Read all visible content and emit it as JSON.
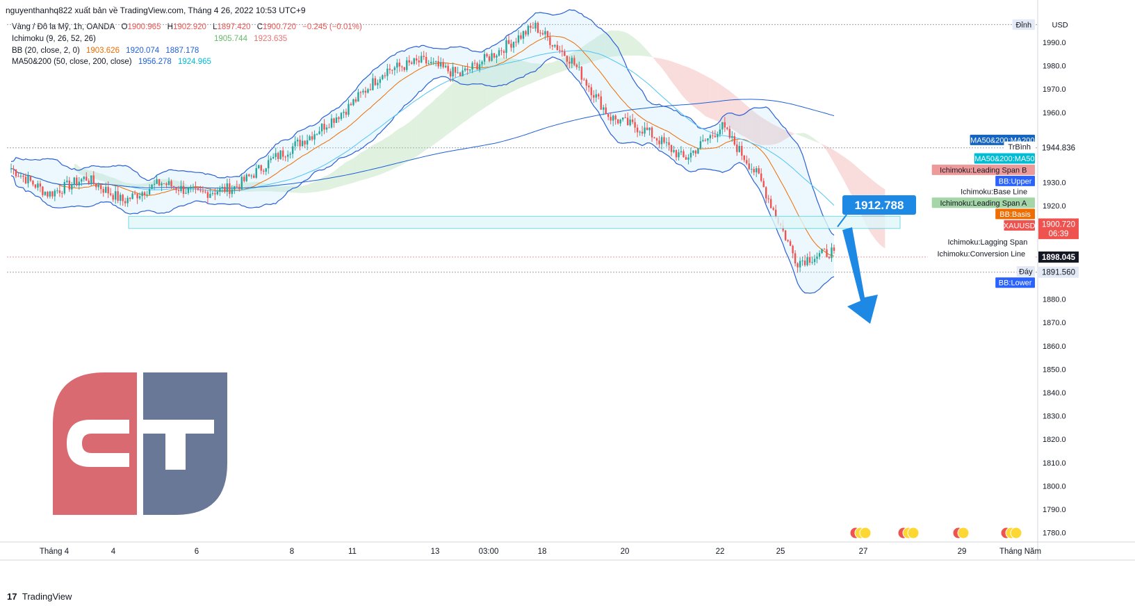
{
  "header": {
    "publisher_line": "nguyenthanhq822 xuất bản về TradingView.com, Tháng 4 26, 2022 10:53 UTC+9"
  },
  "legend": {
    "symbol": "Vàng / Đô la Mỹ, 1h, OANDA",
    "open_label": "O",
    "open": "1900.965",
    "high_label": "H",
    "high": "1902.920",
    "low_label": "L",
    "low": "1897.420",
    "close_label": "C",
    "close": "1900.720",
    "change": "−0.245 (−0.01%)",
    "ichimoku_label": "Ichimoku (9, 26, 52, 26)",
    "ichimoku_a": "1905.744",
    "ichimoku_b": "1923.635",
    "bb_label": "BB (20, close, 2, 0)",
    "bb_basis": "1903.626",
    "bb_upper": "1920.074",
    "bb_lower": "1887.178",
    "ma_label": "MA50&200 (50, close, 200, close)",
    "ma50": "1956.278",
    "ma200": "1924.965"
  },
  "colors": {
    "up": "#26a69a",
    "down": "#ef5350",
    "bb_band": "#2a5fd6",
    "bb_basis": "#ef6c00",
    "ma50": "#4fc3f7",
    "ma200": "#1e5fd9",
    "cloud_green": "#a5d6a7",
    "cloud_red": "#ef9a9a",
    "arrow": "#1e88e5",
    "logo_red": "#d96a72",
    "logo_blue": "#6a7898"
  },
  "annotation": {
    "callout_value": "1912.788"
  },
  "right_labels": [
    {
      "text": "USD",
      "price": 1997.6,
      "bg": "#ffffff",
      "fg": "#131722"
    },
    {
      "text": "Đỉnh",
      "price": 1997.6,
      "bg": "#e3eaf5",
      "fg": "#131722"
    },
    {
      "text": "MA50&200:MA200",
      "price": 1948.2,
      "bg": "#1565c0",
      "fg": "#ffffff"
    },
    {
      "text": "TrBình",
      "price": 1945.3,
      "bg": "#ffffff",
      "fg": "#131722"
    },
    {
      "text": "MA50&200:MA50",
      "price": 1940.3,
      "bg": "#00bcd4",
      "fg": "#ffffff"
    },
    {
      "text": "Ichimoku:Leading Span B",
      "price": 1935.4,
      "bg": "#ef9a9a",
      "fg": "#131722"
    },
    {
      "text": "BB:Upper",
      "price": 1930.6,
      "bg": "#2962ff",
      "fg": "#ffffff"
    },
    {
      "text": "Ichimoku:Base Line",
      "price": 1926.2,
      "bg": "#ffffff",
      "fg": "#131722"
    },
    {
      "text": "Ichimoku:Leading Span A",
      "price": 1921.3,
      "bg": "#a5d6a7",
      "fg": "#131722"
    },
    {
      "text": "BB:Basis",
      "price": 1916.5,
      "bg": "#ef6c00",
      "fg": "#ffffff"
    },
    {
      "text": "XAUUSD",
      "price": 1911.6,
      "bg": "#ef5350",
      "fg": "#ffffff"
    },
    {
      "text": "Ichimoku:Lagging Span",
      "price": 1904.6,
      "bg": "#ffffff",
      "fg": "#131722"
    },
    {
      "text": "Ichimoku:Conversion Line",
      "price": 1899.5,
      "bg": "#ffffff",
      "fg": "#131722"
    },
    {
      "text": "Đáy",
      "price": 1891.9,
      "bg": "#e3eaf5",
      "fg": "#131722"
    },
    {
      "text": "BB:Lower",
      "price": 1887.1,
      "bg": "#2962ff",
      "fg": "#ffffff"
    }
  ],
  "price_tags": [
    {
      "text": "1944.836",
      "price": 1944.836,
      "bg": "#ffffff",
      "fg": "#131722"
    },
    {
      "text": "1900.720",
      "price": 1912.2,
      "bg": "#ef5350",
      "fg": "#ffffff"
    },
    {
      "text": "06:39",
      "price": 1908.1,
      "bg": "#ef5350",
      "fg": "#ffffff"
    },
    {
      "text": "1898.045",
      "price": 1898.045,
      "bg": "#131722",
      "fg": "#ffffff"
    },
    {
      "text": "1891.560",
      "price": 1891.56,
      "bg": "#e3eaf5",
      "fg": "#131722"
    }
  ],
  "time_labels": [
    "Tháng 4",
    "4",
    "6",
    "8",
    "11",
    "13",
    "03:00",
    "18",
    "20",
    "22",
    "25",
    "27",
    "29",
    "Tháng Năm"
  ],
  "footer": {
    "logo_glyph": "17",
    "brand": "TradingView"
  },
  "chart_data": {
    "type": "candlestick",
    "title": "",
    "xlabel": "",
    "ylabel": "USD",
    "y_ticks": [
      1780,
      1790,
      1800,
      1810,
      1820,
      1830,
      1840,
      1850,
      1860,
      1870,
      1880,
      1890,
      1900,
      1910,
      1920,
      1930,
      1940,
      1950,
      1960,
      1970,
      1980,
      1990
    ],
    "ylim": [
      1776,
      2001
    ],
    "x_categories": [
      "Tháng 4",
      "4",
      "6",
      "8",
      "11",
      "13",
      "03:00",
      "18",
      "20",
      "22",
      "25",
      "27",
      "29",
      "Tháng Năm"
    ],
    "price_path": [
      [
        "Tháng 4",
        1936
      ],
      [
        "",
        1925
      ],
      [
        "4",
        1932
      ],
      [
        "",
        1922
      ],
      [
        "6",
        1930
      ],
      [
        "",
        1925
      ],
      [
        "8",
        1928
      ],
      [
        "",
        1940
      ],
      [
        "11",
        1950
      ],
      [
        "",
        1962
      ],
      [
        "13",
        1978
      ],
      [
        "",
        1982
      ],
      [
        "03:00",
        1976
      ],
      [
        "",
        1986
      ],
      [
        "18",
        1997
      ],
      [
        "",
        1982
      ],
      [
        "20",
        1958
      ],
      [
        "",
        1952
      ],
      [
        "22",
        1940
      ],
      [
        "",
        1954
      ],
      [
        "25",
        1932
      ],
      [
        "",
        1896
      ],
      [
        "",
        1900.72
      ]
    ],
    "ohlc_last": {
      "open": 1900.965,
      "high": 1902.92,
      "low": 1897.42,
      "close": 1900.72,
      "change": -0.245,
      "change_pct": -0.01
    },
    "key_levels": {
      "high": 1997.6,
      "low": 1891.56,
      "average": 1944.836,
      "projection": 1912.788
    },
    "indicators": {
      "bollinger": {
        "basis": 1903.626,
        "upper": 1920.074,
        "lower": 1887.178
      },
      "ichimoku": {
        "leading_span_a": 1905.744,
        "leading_span_b": 1923.635
      },
      "ma50": 1956.278,
      "ma200": 1924.965
    },
    "grid": false,
    "legend_position": "top-left"
  }
}
